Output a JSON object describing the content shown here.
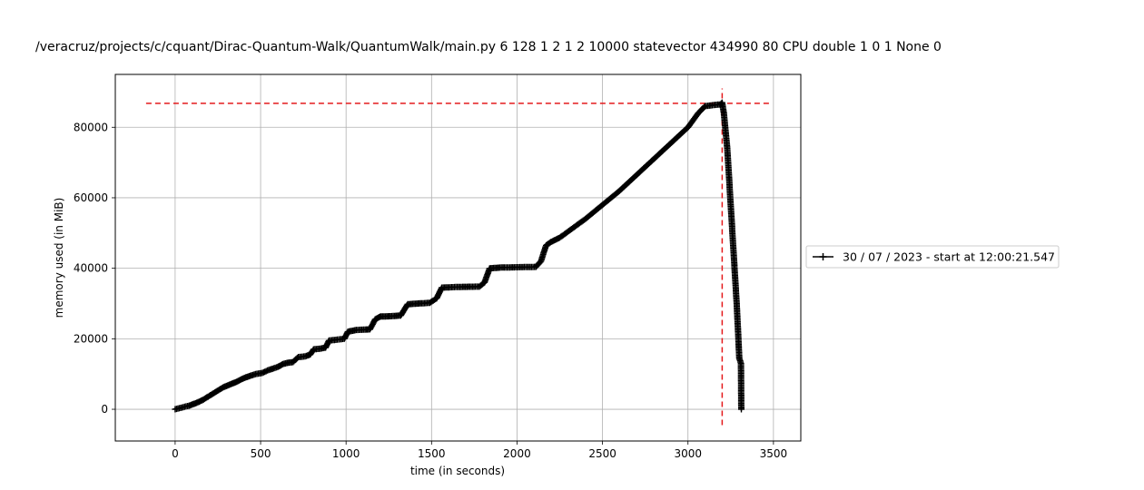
{
  "chart_data": {
    "type": "line",
    "title": "/veracruz/projects/c/cquant/Dirac-Quantum-Walk/QuantumWalk/main.py 6 128 1 2 1 2 10000 statevector 434990 80 CPU double 1 0 1 None 0",
    "xlabel": "time (in seconds)",
    "ylabel": "memory used (in MiB)",
    "xlim": [
      -350,
      3660
    ],
    "ylim": [
      -9000,
      95000
    ],
    "xticks": [
      0,
      500,
      1000,
      1500,
      2000,
      2500,
      3000,
      3500
    ],
    "yticks": [
      0,
      20000,
      40000,
      60000,
      80000
    ],
    "grid": true,
    "legend_placement": "outside-right",
    "colors": {
      "series": "#000000",
      "peak_lines": "#e41a1c",
      "grid": "#b0b0b0"
    },
    "series": [
      {
        "name": "30 / 07 / 2023 - start at 12:00:21.547",
        "marker": "+",
        "points": [
          [
            0,
            0
          ],
          [
            40,
            500
          ],
          [
            80,
            1000
          ],
          [
            120,
            1700
          ],
          [
            160,
            2600
          ],
          [
            200,
            3800
          ],
          [
            240,
            5000
          ],
          [
            280,
            6200
          ],
          [
            320,
            7000
          ],
          [
            360,
            7800
          ],
          [
            400,
            8800
          ],
          [
            440,
            9500
          ],
          [
            470,
            10000
          ],
          [
            510,
            10300
          ],
          [
            540,
            11000
          ],
          [
            570,
            11500
          ],
          [
            600,
            12000
          ],
          [
            630,
            12800
          ],
          [
            660,
            13200
          ],
          [
            690,
            13400
          ],
          [
            720,
            14800
          ],
          [
            760,
            15000
          ],
          [
            790,
            15500
          ],
          [
            810,
            17000
          ],
          [
            850,
            17200
          ],
          [
            880,
            17500
          ],
          [
            900,
            19500
          ],
          [
            940,
            19700
          ],
          [
            990,
            20000
          ],
          [
            1010,
            22000
          ],
          [
            1060,
            22500
          ],
          [
            1110,
            22600
          ],
          [
            1140,
            22700
          ],
          [
            1170,
            25500
          ],
          [
            1200,
            26300
          ],
          [
            1260,
            26400
          ],
          [
            1320,
            26600
          ],
          [
            1360,
            29800
          ],
          [
            1420,
            30000
          ],
          [
            1490,
            30200
          ],
          [
            1530,
            31500
          ],
          [
            1560,
            34500
          ],
          [
            1650,
            34700
          ],
          [
            1780,
            34800
          ],
          [
            1810,
            36000
          ],
          [
            1840,
            40000
          ],
          [
            1900,
            40200
          ],
          [
            2000,
            40300
          ],
          [
            2110,
            40400
          ],
          [
            2140,
            42000
          ],
          [
            2170,
            46500
          ],
          [
            2200,
            47500
          ],
          [
            2250,
            48700
          ],
          [
            2400,
            54000
          ],
          [
            2600,
            62000
          ],
          [
            2800,
            71000
          ],
          [
            3000,
            80000
          ],
          [
            3060,
            84000
          ],
          [
            3100,
            86000
          ],
          [
            3150,
            86300
          ],
          [
            3190,
            86500
          ],
          [
            3200,
            87000
          ],
          [
            3210,
            84000
          ],
          [
            3230,
            74000
          ],
          [
            3250,
            58000
          ],
          [
            3270,
            42000
          ],
          [
            3285,
            30000
          ],
          [
            3295,
            20000
          ],
          [
            3300,
            14500
          ],
          [
            3310,
            13000
          ],
          [
            3312,
            0
          ]
        ]
      }
    ],
    "reference_lines": {
      "horizontal_y": 86800,
      "horizontal_x_range": [
        -170,
        3490
      ],
      "vertical_x": 3200,
      "vertical_y_range": [
        -4500,
        91000
      ]
    }
  }
}
